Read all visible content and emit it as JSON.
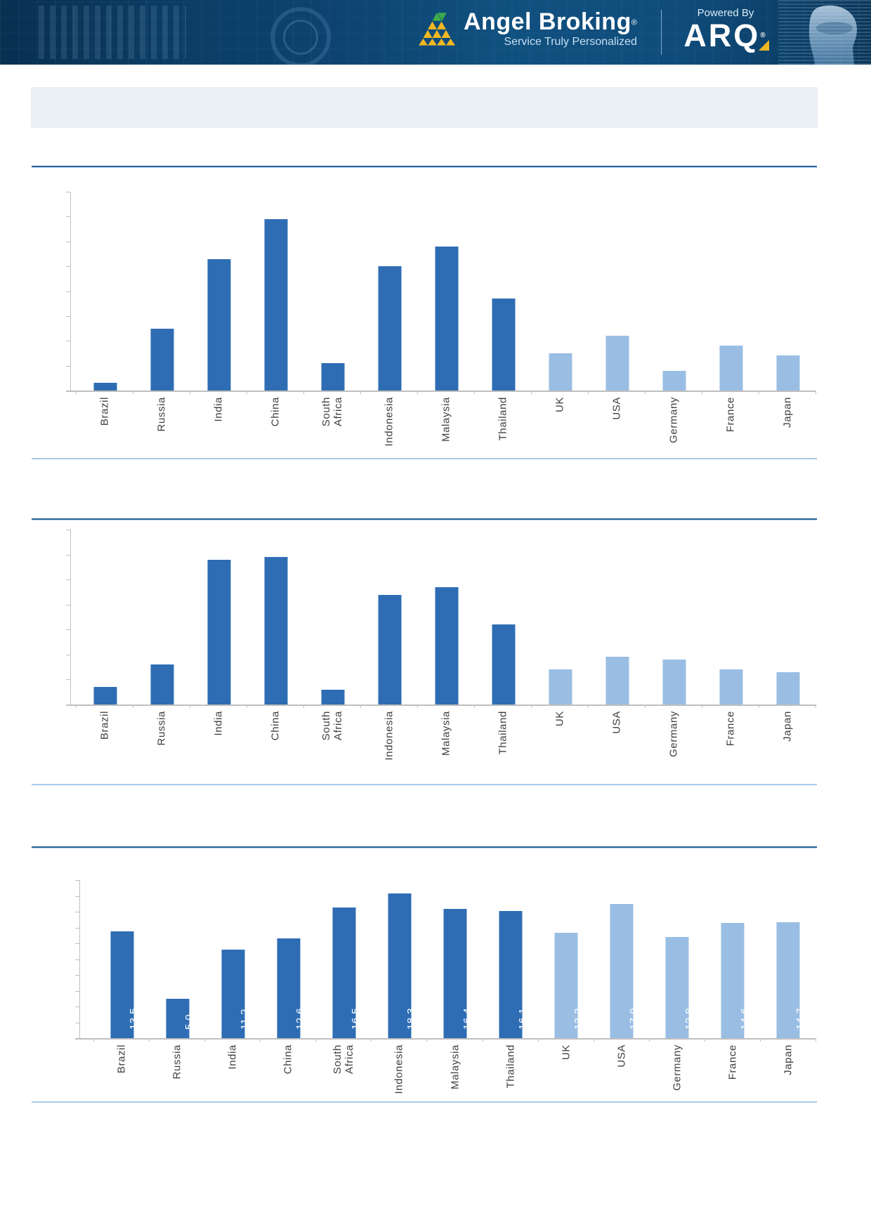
{
  "header": {
    "brand_name": "Angel Broking",
    "brand_registered_mark": "®",
    "tagline": "Service Truly Personalized",
    "powered_by_label": "Powered By",
    "product_name": "ARQ",
    "product_registered_mark": "®",
    "logo_icon": "triangle-pyramid-logo",
    "right_graphic": "holographic-head",
    "colors": {
      "background": "#0D436E",
      "logo_yellow": "#F2B822",
      "logo_green": "#3FAE49",
      "text": "#FFFFFF",
      "tagline_text": "#C7DFF2"
    }
  },
  "title_band": {
    "text": "",
    "background": "#E9EFF4"
  },
  "chart_data": [
    {
      "type": "bar",
      "title": "",
      "categories": [
        "Brazil",
        "Russia",
        "India",
        "China",
        "South Africa",
        "Indonesia",
        "Malaysia",
        "Thailand",
        "UK",
        "USA",
        "Germany",
        "France",
        "Japan"
      ],
      "values": [
        0.3,
        2.5,
        5.3,
        6.9,
        1.1,
        5.0,
        5.8,
        3.7,
        1.5,
        2.2,
        0.8,
        1.8,
        1.4
      ],
      "values_estimated_from_pixels": true,
      "ylim": [
        0,
        8
      ],
      "ytick_step": 1,
      "yaxis_tick_labels_visible": false,
      "value_labels_shown": false,
      "wrap_labels": true,
      "color_split_index": 8,
      "colors": {
        "primary": "#2E6DB4",
        "secondary": "#9ABEE3"
      },
      "grid": false,
      "legend": "none"
    },
    {
      "type": "bar",
      "title": "",
      "categories": [
        "Brazil",
        "Russia",
        "India",
        "China",
        "South Africa",
        "Indonesia",
        "Malaysia",
        "Thailand",
        "UK",
        "USA",
        "Germany",
        "France",
        "Japan"
      ],
      "values": [
        0.7,
        1.6,
        5.8,
        5.9,
        0.6,
        4.4,
        4.7,
        3.2,
        1.4,
        1.9,
        1.8,
        1.4,
        1.3
      ],
      "values_estimated_from_pixels": true,
      "ylim": [
        0,
        7
      ],
      "ytick_step": 1,
      "yaxis_tick_labels_visible": false,
      "value_labels_shown": false,
      "wrap_labels": false,
      "color_split_index": 8,
      "colors": {
        "primary": "#2E6DB4",
        "secondary": "#9ABEE3"
      },
      "grid": false,
      "legend": "none"
    },
    {
      "type": "bar",
      "title": "",
      "categories": [
        "Brazil",
        "Russia",
        "India",
        "China",
        "South Africa",
        "Indonesia",
        "Malaysia",
        "Thailand",
        "UK",
        "USA",
        "Germany",
        "France",
        "Japan"
      ],
      "values": [
        13.5,
        5.0,
        11.2,
        12.6,
        16.5,
        18.3,
        16.4,
        16.1,
        13.3,
        17.0,
        12.8,
        14.6,
        14.7
      ],
      "ylim": [
        0,
        20
      ],
      "ytick_step": 2,
      "yaxis_tick_labels_visible": false,
      "value_labels_shown": true,
      "value_label_decimals": 1,
      "value_label_color": "#FFFFFF",
      "wrap_labels": true,
      "color_split_index": 8,
      "colors": {
        "primary": "#2E6DB4",
        "secondary": "#9ABEE3"
      },
      "grid": false,
      "legend": "none"
    }
  ]
}
